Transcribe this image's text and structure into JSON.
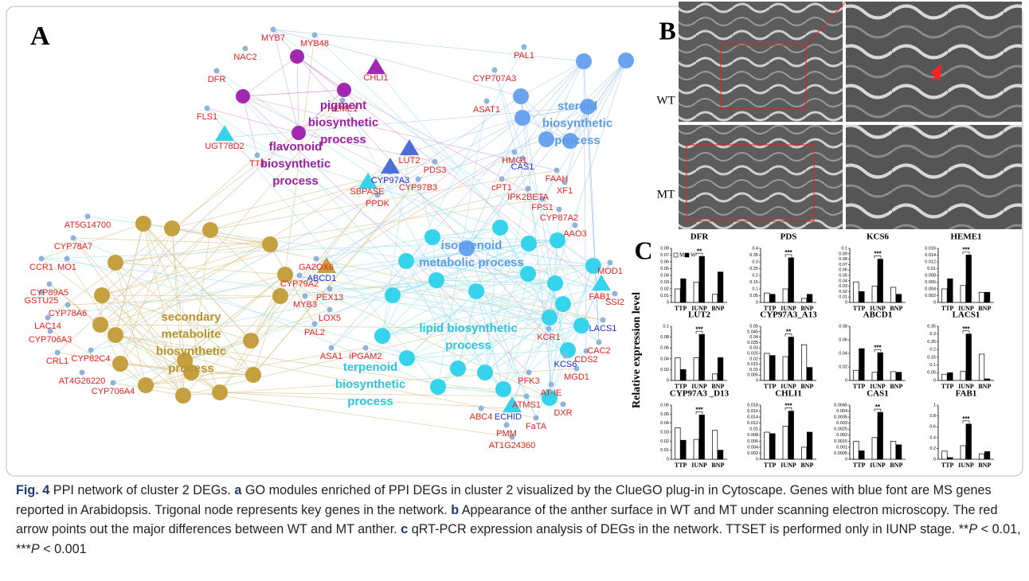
{
  "panel_a": {
    "label": "A",
    "gene_color": "#e8211e",
    "ms_gene_color": "#1b2fd0",
    "genes": [
      "MYB7",
      "MYB48",
      "NAC2",
      "CHLI1",
      "DFR",
      "HEME1",
      "FLS1",
      "UGT78D2",
      "TT4",
      "LUT2",
      "PDS3",
      "CYP97B3",
      "SBPASE",
      "PPDK",
      "PAL1",
      "CYP707A3",
      "ASAT1",
      "HMG1",
      "FAAH",
      "XF1",
      "cPT1",
      "IPK2BETA",
      "FPS1",
      "CYP87A2",
      "AAO3",
      "AT5G14700",
      "CYP78A7",
      "CCR1",
      "MO1",
      "CYP89A5",
      "GSTU25",
      "CYP78A6",
      "LAC14",
      "CYP706A3",
      "CRL1",
      "CYP82C4",
      "AT4G26220",
      "CYP706A4",
      "GA2OX6",
      "CYP79A2",
      "MYB3",
      "PEX13",
      "LOX5",
      "PAL2",
      "ASA1",
      "iPGAM2",
      "MOD1",
      "FAB1",
      "SSI2",
      "KCR1",
      "CAC2",
      "CDS2",
      "MGD1",
      "PFK3",
      "AT-IE",
      "ATMS1",
      "ABC4",
      "DXR",
      "FaTA",
      "PMM",
      "AT1G24360"
    ],
    "ms_genes": [
      "CYP97A3",
      "CAS1",
      "ABCD1",
      "LACS1",
      "KCS6",
      "ECHID"
    ],
    "modules": [
      {
        "lines": [
          "pigment",
          "biosynthetic",
          "process"
        ],
        "color": "#9b1fa3"
      },
      {
        "lines": [
          "flavonoid",
          "biosynthetic",
          "process"
        ],
        "color": "#9b1fa3"
      },
      {
        "lines": [
          "steroid",
          "biosynthetic",
          "process"
        ],
        "color": "#5b9be8"
      },
      {
        "lines": [
          "isoprenoid",
          "metabolic process"
        ],
        "color": "#5b9be8"
      },
      {
        "lines": [
          "lipid biosynthetic",
          "process"
        ],
        "color": "#2cc6de"
      },
      {
        "lines": [
          "terpenoid",
          "biosynthetic",
          "process"
        ],
        "color": "#2cc6de"
      },
      {
        "lines": [
          "secondary",
          "metabolite",
          "biosynthetic",
          "process"
        ],
        "color": "#b8932c"
      }
    ]
  },
  "panel_b": {
    "label": "B",
    "rows": [
      "WT",
      "MT"
    ]
  },
  "panel_c": {
    "label": "C",
    "y_label": "Relative expression level",
    "categories": [
      "TTP",
      "IUNP",
      "BNP"
    ],
    "series": [
      {
        "name": "M",
        "color": "#ffffff"
      },
      {
        "name": "W",
        "color": "#000000"
      }
    ],
    "charts": [
      {
        "title": "DFR",
        "ylim": [
          0,
          0.08
        ],
        "yticks": [
          0,
          0.01,
          0.02,
          0.03,
          0.04,
          0.05,
          0.06,
          0.07,
          0.08
        ],
        "M": [
          0.02,
          0.03,
          0.012
        ],
        "W": [
          0.035,
          0.068,
          0.045
        ],
        "significance": "**"
      },
      {
        "title": "PDS",
        "ylim": [
          0,
          0.4
        ],
        "yticks": [
          0,
          0.05,
          0.1,
          0.15,
          0.2,
          0.25,
          0.3,
          0.35,
          0.4
        ],
        "M": [
          0.07,
          0.1,
          0.03
        ],
        "W": [
          0.06,
          0.33,
          0.06
        ],
        "significance": "***"
      },
      {
        "title": "KCS6",
        "ylim": [
          0,
          0.1
        ],
        "yticks": [
          0,
          0.01,
          0.02,
          0.03,
          0.04,
          0.05,
          0.06,
          0.07,
          0.08,
          0.09,
          0.1
        ],
        "M": [
          0.038,
          0.03,
          0.028
        ],
        "W": [
          0.02,
          0.08,
          0.015
        ],
        "significance": "***"
      },
      {
        "title": "HEME1",
        "ylim": [
          0,
          0.016
        ],
        "yticks": [
          0,
          0.002,
          0.004,
          0.006,
          0.008,
          0.01,
          0.012,
          0.014,
          0.016
        ],
        "M": [
          0.004,
          0.005,
          0.003
        ],
        "W": [
          0.007,
          0.014,
          0.003
        ],
        "significance": "***"
      },
      {
        "title": "LUT2",
        "ylim": [
          0,
          0.1
        ],
        "yticks": [
          0,
          0.02,
          0.04,
          0.06,
          0.08,
          0.1
        ],
        "M": [
          0.042,
          0.042,
          0.012
        ],
        "W": [
          0.02,
          0.085,
          0.042
        ],
        "significance": "***"
      },
      {
        "title": "CYP97A3_A13",
        "ylim": [
          0,
          0.05
        ],
        "yticks": [
          0,
          0.005,
          0.01,
          0.015,
          0.02,
          0.025,
          0.03,
          0.035,
          0.04,
          0.045,
          0.05
        ],
        "M": [
          0.025,
          0.022,
          0.033
        ],
        "W": [
          0.023,
          0.04,
          0.012
        ],
        "significance": "**"
      },
      {
        "title": "ABCD1",
        "ylim": [
          0,
          0.08
        ],
        "yticks": [
          0,
          0.02,
          0.04,
          0.06,
          0.08
        ],
        "M": [
          0.015,
          0.012,
          0.013
        ],
        "W": [
          0.047,
          0.041,
          0.012
        ],
        "significance": "***"
      },
      {
        "title": "LACS1",
        "ylim": [
          0,
          0.35
        ],
        "yticks": [
          0,
          0.05,
          0.1,
          0.15,
          0.2,
          0.25,
          0.3,
          0.35
        ],
        "M": [
          0.04,
          0.06,
          0.17
        ],
        "W": [
          0.05,
          0.3,
          0.01
        ],
        "significance": "***"
      },
      {
        "title": "CYP97A3 _D13",
        "ylim": [
          0,
          0.06
        ],
        "yticks": [
          0,
          0.01,
          0.02,
          0.03,
          0.04,
          0.05,
          0.06
        ],
        "M": [
          0.035,
          0.022,
          0.032
        ],
        "W": [
          0.021,
          0.049,
          0.01
        ],
        "significance": "***"
      },
      {
        "title": "CHLI1",
        "ylim": [
          0,
          0.018
        ],
        "yticks": [
          0,
          0.002,
          0.004,
          0.006,
          0.008,
          0.01,
          0.012,
          0.014,
          0.016,
          0.018
        ],
        "M": [
          0.009,
          0.011,
          0.004
        ],
        "W": [
          0.0085,
          0.016,
          0.009
        ],
        "significance": "***"
      },
      {
        "title": "CAS1",
        "ylim": [
          0,
          0.0045
        ],
        "yticks": [
          0,
          0.0005,
          0.001,
          0.0015,
          0.002,
          0.0025,
          0.003,
          0.0035,
          0.004,
          0.0045
        ],
        "M": [
          0.0015,
          0.0018,
          0.0015
        ],
        "W": [
          0.0007,
          0.0039,
          0.0012
        ],
        "significance": "**"
      },
      {
        "title": "FAB1",
        "ylim": [
          0,
          1
        ],
        "yticks": [
          0,
          0.2,
          0.4,
          0.6,
          0.8,
          1
        ],
        "M": [
          0.15,
          0.25,
          0.1
        ],
        "W": [
          0.03,
          0.65,
          0.14
        ],
        "significance": "***"
      }
    ]
  },
  "caption": [
    "Fig. 4",
    " PPI network of cluster 2 DEGs. ",
    "a",
    " GO modules enriched of PPI DEGs in cluster 2 visualized by the ClueGO plug-in in Cytoscape. Genes with blue font are MS genes reported in Arabidopsis. Trigonal node represents key genes in the network. ",
    "b",
    " Appearance of the anther surface in WT and MT under scanning electron microscopy. The red arrow points out the major differences between WT and MT anther. ",
    "c",
    " qRT-PCR expression analysis of DEGs in the network. TTSET is performed only in IUNP stage. **",
    "P",
    " < 0.01, ***",
    "P",
    " < 0.001"
  ]
}
